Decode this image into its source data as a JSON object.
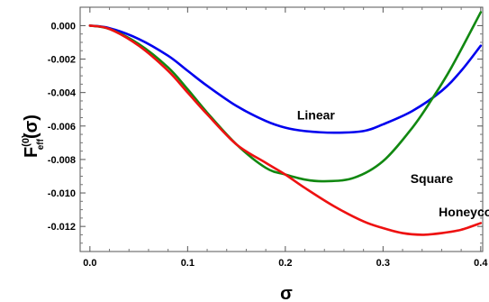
{
  "chart_data": {
    "type": "line",
    "xlabel": "σ",
    "ylabel": {
      "base": "F",
      "superscript": "(0)",
      "subscript": "eff",
      "argument": "(σ)"
    },
    "xlim": [
      -0.01,
      0.402
    ],
    "ylim": [
      -0.0135,
      0.0011
    ],
    "x_ticks": [
      0.0,
      0.1,
      0.2,
      0.3,
      0.4
    ],
    "x_tick_labels": [
      "0.0",
      "0.1",
      "0.2",
      "0.3",
      "0.4"
    ],
    "y_ticks": [
      0.0,
      -0.002,
      -0.004,
      -0.006,
      -0.008,
      -0.01,
      -0.012
    ],
    "y_tick_labels": [
      "0.000",
      "-0.002",
      "-0.004",
      "-0.006",
      "-0.008",
      "-0.010",
      "-0.012"
    ],
    "grid": false,
    "series": [
      {
        "name": "Linear",
        "color": "#0000ee",
        "x": [
          0.0,
          0.02,
          0.05,
          0.08,
          0.1,
          0.12,
          0.15,
          0.18,
          0.2,
          0.22,
          0.25,
          0.28,
          0.3,
          0.33,
          0.36,
          0.38,
          0.4
        ],
        "y": [
          0.0,
          -0.00015,
          -0.0008,
          -0.0018,
          -0.0027,
          -0.0036,
          -0.0048,
          -0.0057,
          -0.0061,
          -0.0063,
          -0.0064,
          -0.0063,
          -0.0059,
          -0.0051,
          -0.0039,
          -0.0027,
          -0.0012
        ]
      },
      {
        "name": "Square",
        "color": "#118811",
        "x": [
          0.0,
          0.02,
          0.05,
          0.08,
          0.1,
          0.12,
          0.15,
          0.18,
          0.2,
          0.22,
          0.24,
          0.27,
          0.3,
          0.33,
          0.35,
          0.37,
          0.4
        ],
        "y": [
          0.0,
          -0.0002,
          -0.0011,
          -0.0025,
          -0.0038,
          -0.0052,
          -0.0071,
          -0.0085,
          -0.0089,
          -0.0092,
          -0.0093,
          -0.0091,
          -0.0081,
          -0.0061,
          -0.0044,
          -0.0025,
          0.0008
        ]
      },
      {
        "name": "Honeycomb",
        "color": "#ee1111",
        "x": [
          0.0,
          0.02,
          0.05,
          0.08,
          0.1,
          0.12,
          0.15,
          0.18,
          0.2,
          0.22,
          0.25,
          0.28,
          0.3,
          0.32,
          0.34,
          0.36,
          0.38,
          0.4
        ],
        "y": [
          0.0,
          -0.0002,
          -0.0012,
          -0.0027,
          -0.004,
          -0.0053,
          -0.0071,
          -0.0082,
          -0.0089,
          -0.0097,
          -0.0108,
          -0.0117,
          -0.0121,
          -0.0124,
          -0.0125,
          -0.0124,
          -0.0122,
          -0.0118
        ]
      }
    ],
    "annotations": [
      {
        "text": "Linear",
        "x": 0.212,
        "y": -0.0056
      },
      {
        "text": "Square",
        "x": 0.328,
        "y": -0.0094
      },
      {
        "text": "Honeycomb",
        "x": 0.357,
        "y": -0.0114
      }
    ]
  }
}
